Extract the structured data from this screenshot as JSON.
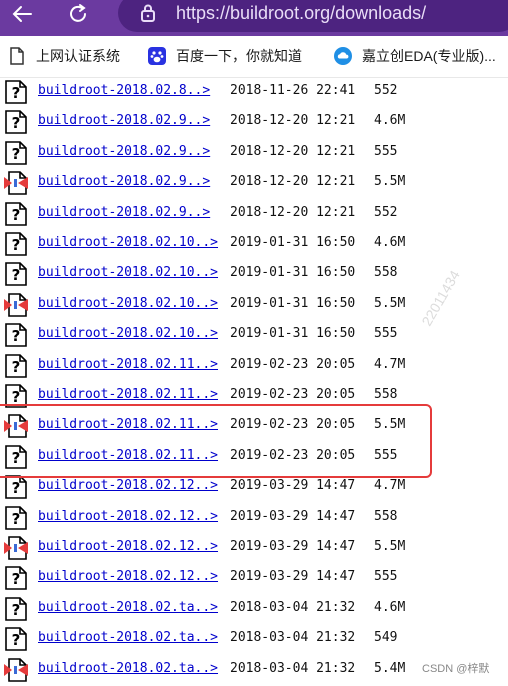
{
  "browser": {
    "url": "https://buildroot.org/downloads/",
    "icons": {
      "back": "arrow-left-icon",
      "reload": "reload-icon",
      "lock": "lock-icon"
    }
  },
  "bookmarks": [
    {
      "label": "上网认证系统",
      "icon": "document-icon"
    },
    {
      "label": "百度一下，你就知道",
      "icon": "baidu-paw-icon"
    },
    {
      "label": "嘉立创EDA(专业版)...",
      "icon": "cloud-logo-icon"
    }
  ],
  "listing": [
    {
      "name": "buildroot-2018.02.8..>",
      "date": "2018-11-26 22:41",
      "size": "552",
      "icon": "unknown-file-icon"
    },
    {
      "name": "buildroot-2018.02.9..>",
      "date": "2018-12-20 12:21",
      "size": "4.6M",
      "icon": "unknown-file-icon"
    },
    {
      "name": "buildroot-2018.02.9..>",
      "date": "2018-12-20 12:21",
      "size": "555",
      "icon": "unknown-file-icon"
    },
    {
      "name": "buildroot-2018.02.9..>",
      "date": "2018-12-20 12:21",
      "size": "5.5M",
      "icon": "archive-file-icon"
    },
    {
      "name": "buildroot-2018.02.9..>",
      "date": "2018-12-20 12:21",
      "size": "552",
      "icon": "unknown-file-icon"
    },
    {
      "name": "buildroot-2018.02.10..>",
      "date": "2019-01-31 16:50",
      "size": "4.6M",
      "icon": "unknown-file-icon"
    },
    {
      "name": "buildroot-2018.02.10..>",
      "date": "2019-01-31 16:50",
      "size": "558",
      "icon": "unknown-file-icon"
    },
    {
      "name": "buildroot-2018.02.10..>",
      "date": "2019-01-31 16:50",
      "size": "5.5M",
      "icon": "archive-file-icon"
    },
    {
      "name": "buildroot-2018.02.10..>",
      "date": "2019-01-31 16:50",
      "size": "555",
      "icon": "unknown-file-icon"
    },
    {
      "name": "buildroot-2018.02.11..>",
      "date": "2019-02-23 20:05",
      "size": "4.7M",
      "icon": "unknown-file-icon"
    },
    {
      "name": "buildroot-2018.02.11..>",
      "date": "2019-02-23 20:05",
      "size": "558",
      "icon": "unknown-file-icon"
    },
    {
      "name": "buildroot-2018.02.11..>",
      "date": "2019-02-23 20:05",
      "size": "5.5M",
      "icon": "archive-file-icon"
    },
    {
      "name": "buildroot-2018.02.11..>",
      "date": "2019-02-23 20:05",
      "size": "555",
      "icon": "unknown-file-icon"
    },
    {
      "name": "buildroot-2018.02.12..>",
      "date": "2019-03-29 14:47",
      "size": "4.7M",
      "icon": "unknown-file-icon"
    },
    {
      "name": "buildroot-2018.02.12..>",
      "date": "2019-03-29 14:47",
      "size": "558",
      "icon": "unknown-file-icon"
    },
    {
      "name": "buildroot-2018.02.12..>",
      "date": "2019-03-29 14:47",
      "size": "5.5M",
      "icon": "archive-file-icon"
    },
    {
      "name": "buildroot-2018.02.12..>",
      "date": "2019-03-29 14:47",
      "size": "555",
      "icon": "unknown-file-icon"
    },
    {
      "name": "buildroot-2018.02.ta..>",
      "date": "2018-03-04 21:32",
      "size": "4.6M",
      "icon": "unknown-file-icon"
    },
    {
      "name": "buildroot-2018.02.ta..>",
      "date": "2018-03-04 21:32",
      "size": "549",
      "icon": "unknown-file-icon"
    },
    {
      "name": "buildroot-2018.02.ta..>",
      "date": "2018-03-04 21:32",
      "size": "5.4M",
      "icon": "archive-file-icon"
    }
  ],
  "watermark": "CSDN @梓默",
  "colors": {
    "browser_bar": "#6b3aa0",
    "url_box": "#4d2380",
    "link": "#0000cc",
    "highlight": "#e53b3b"
  }
}
